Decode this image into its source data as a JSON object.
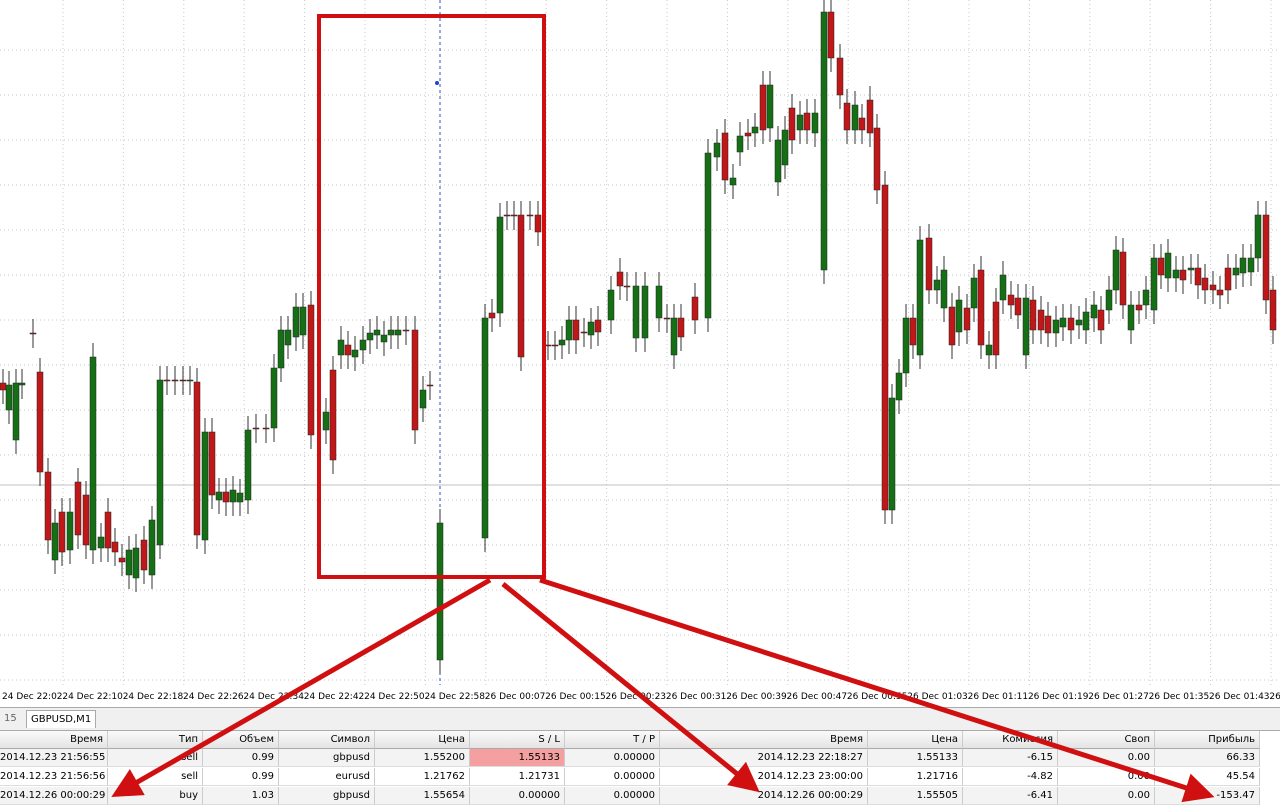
{
  "chart": {
    "time_labels": [
      "24 Dec 22:02",
      "24 Dec 22:10",
      "24 Dec 22:18",
      "24 Dec 22:26",
      "24 Dec 22:34",
      "24 Dec 22:42",
      "24 Dec 22:50",
      "24 Dec 22:58",
      "26 Dec 00:07",
      "26 Dec 00:15",
      "26 Dec 00:23",
      "26 Dec 00:31",
      "26 Dec 00:39",
      "26 Dec 00:47",
      "26 Dec 00:55",
      "26 Dec 01:03",
      "26 Dec 01:11",
      "26 Dec 01:19",
      "26 Dec 01:27",
      "26 Dec 01:35",
      "26 Dec 01:43",
      "26"
    ]
  },
  "tabs": [
    "15",
    "GBPUSD,M1"
  ],
  "table": {
    "headers": [
      "Время",
      "Тип",
      "Объем",
      "Символ",
      "Цена",
      "S / L",
      "T / P",
      "Время",
      "Цена",
      "Комиссия",
      "Своп",
      "Прибыль"
    ],
    "rows": [
      [
        "2014.12.23 21:56:55",
        "sell",
        "0.99",
        "gbpusd",
        "1.55200",
        "1.55133",
        "0.00000",
        "2014.12.23 22:18:27",
        "1.55133",
        "-6.15",
        "0.00",
        "66.33"
      ],
      [
        "2014.12.23 21:56:56",
        "sell",
        "0.99",
        "eurusd",
        "1.21762",
        "1.21731",
        "0.00000",
        "2014.12.23 23:00:00",
        "1.21716",
        "-4.82",
        "0.00",
        "45.54"
      ],
      [
        "2014.12.26 00:00:29",
        "buy",
        "1.03",
        "gbpusd",
        "1.55654",
        "0.00000",
        "0.00000",
        "2014.12.26 00:00:29",
        "1.55505",
        "-6.41",
        "0.00",
        "-153.47"
      ]
    ]
  }
}
